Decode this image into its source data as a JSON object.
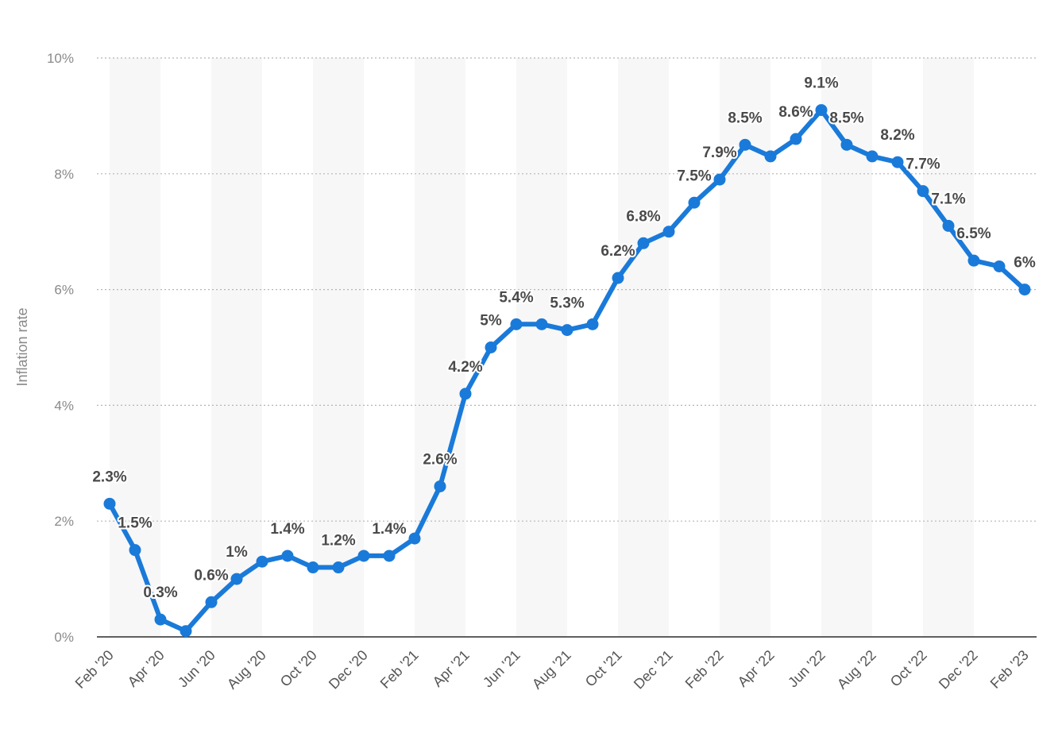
{
  "chart_data": {
    "type": "line",
    "title": "",
    "xlabel": "",
    "ylabel": "Inflation rate",
    "ylim": [
      0,
      10
    ],
    "y_ticks": [
      "0%",
      "2%",
      "4%",
      "6%",
      "8%",
      "10%"
    ],
    "x_tick_labels": [
      "Feb '20",
      "Apr '20",
      "Jun '20",
      "Aug '20",
      "Oct '20",
      "Dec '20",
      "Feb '21",
      "Apr '21",
      "Jun '21",
      "Aug '21",
      "Oct '21",
      "Dec '21",
      "Feb '22",
      "Apr '22",
      "Jun '22",
      "Aug '22",
      "Oct '22",
      "Dec '22",
      "Feb '23"
    ],
    "grid": true,
    "series_color": "#1a7ad9",
    "values": [
      2.3,
      1.5,
      0.3,
      0.1,
      0.6,
      1.0,
      1.3,
      1.4,
      1.2,
      1.2,
      1.4,
      1.4,
      1.7,
      2.6,
      4.2,
      5.0,
      5.4,
      5.4,
      5.3,
      5.4,
      6.2,
      6.8,
      7.0,
      7.5,
      7.9,
      8.5,
      8.3,
      8.6,
      9.1,
      8.5,
      8.3,
      8.2,
      7.7,
      7.1,
      6.5,
      6.4,
      6.0
    ],
    "data_labels": [
      "2.3%",
      "1.5%",
      "0.3%",
      "",
      "0.6%",
      "1%",
      "",
      "1.4%",
      "",
      "1.2%",
      "",
      "1.4%",
      "",
      "2.6%",
      "4.2%",
      "5%",
      "5.4%",
      "",
      "5.3%",
      "",
      "6.2%",
      "6.8%",
      "",
      "7.5%",
      "7.9%",
      "8.5%",
      "",
      "8.6%",
      "9.1%",
      "8.5%",
      "",
      "8.2%",
      "7.7%",
      "7.1%",
      "6.5%",
      "",
      "6%"
    ]
  }
}
